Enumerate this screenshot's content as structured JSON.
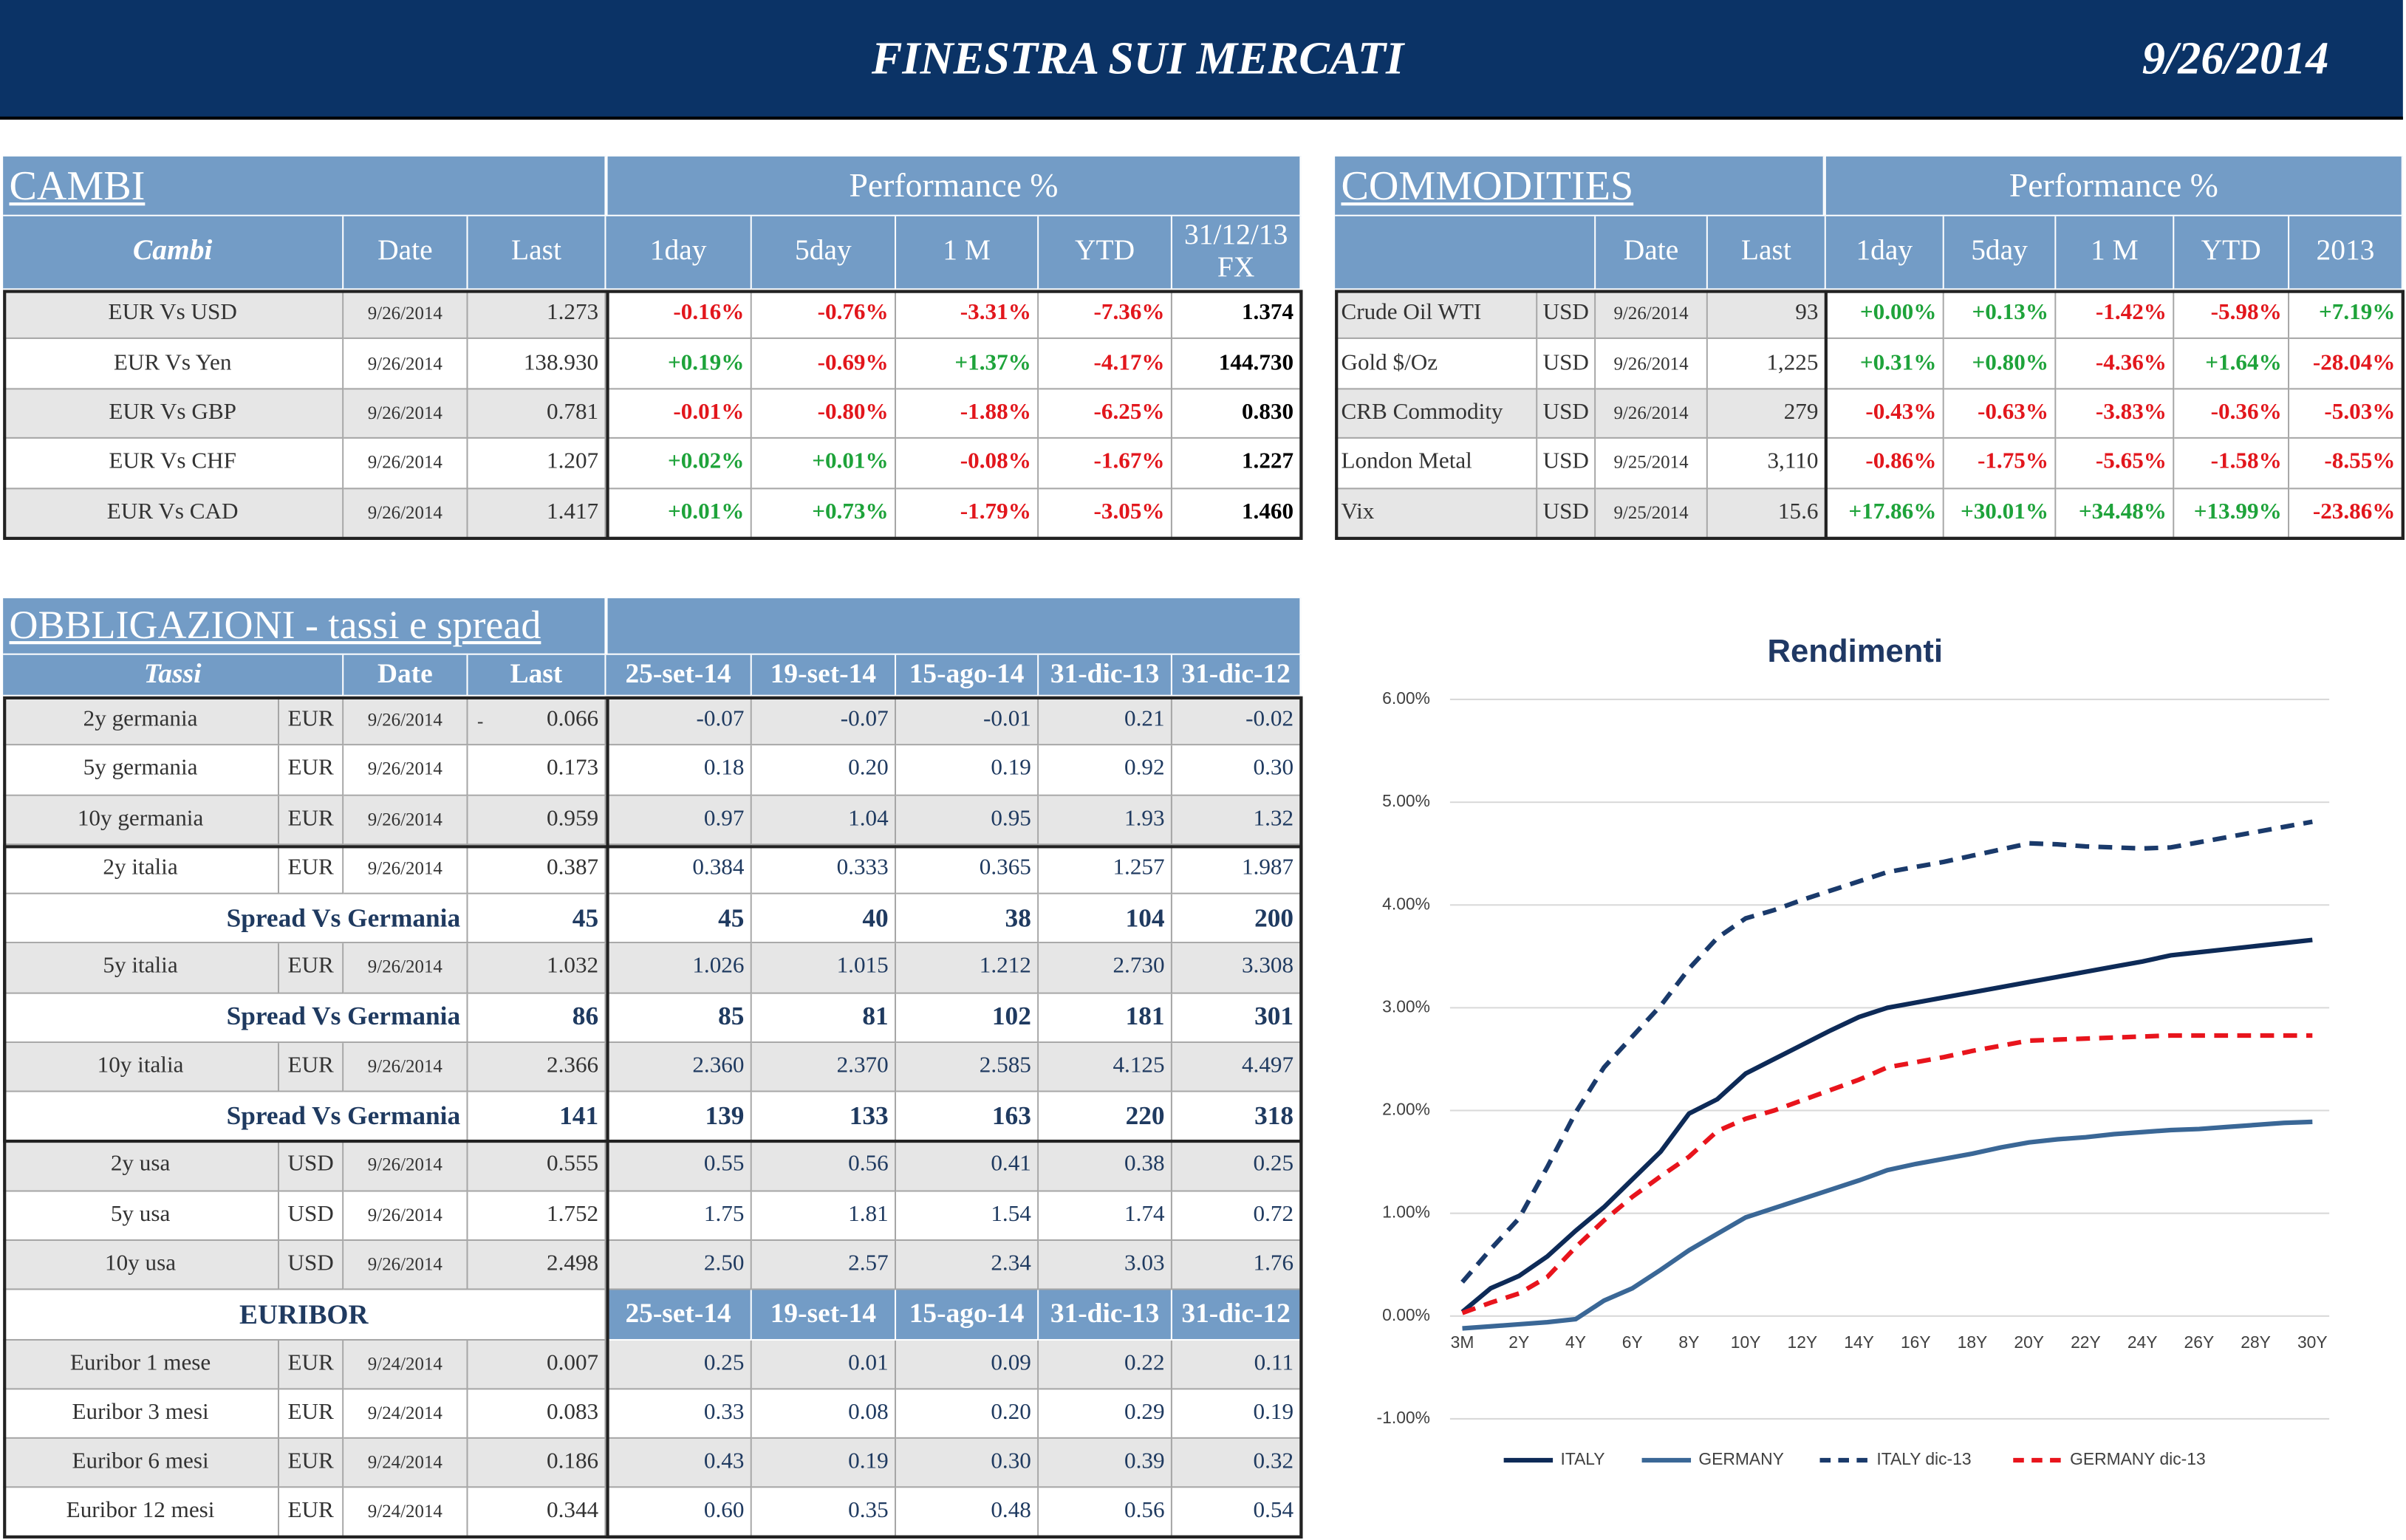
{
  "header": {
    "title": "FINESTRA SUI MERCATI",
    "date": "9/26/2014"
  },
  "cambi": {
    "title": "CAMBI",
    "group": "Performance  %",
    "columns": [
      "Cambi",
      "Date",
      "Last",
      "1day",
      "5day",
      "1 M",
      "YTD",
      "31/12/13 FX"
    ],
    "rows": [
      [
        "EUR Vs USD",
        "9/26/2014",
        "1.273",
        "-0.16%",
        "-0.76%",
        "-3.31%",
        "-7.36%",
        "1.374"
      ],
      [
        "EUR Vs Yen",
        "9/26/2014",
        "138.930",
        "+0.19%",
        "-0.69%",
        "+1.37%",
        "-4.17%",
        "144.730"
      ],
      [
        "EUR Vs GBP",
        "9/26/2014",
        "0.781",
        "-0.01%",
        "-0.80%",
        "-1.88%",
        "-6.25%",
        "0.830"
      ],
      [
        "EUR Vs CHF",
        "9/26/2014",
        "1.207",
        "+0.02%",
        "+0.01%",
        "-0.08%",
        "-1.67%",
        "1.227"
      ],
      [
        "EUR Vs CAD",
        "9/26/2014",
        "1.417",
        "+0.01%",
        "+0.73%",
        "-1.79%",
        "-3.05%",
        "1.460"
      ]
    ]
  },
  "commodities": {
    "title": "COMMODITIES",
    "group": "Performance  %",
    "columns": [
      "Date",
      "Last",
      "1day",
      "5day",
      "1 M",
      "YTD",
      "2013"
    ],
    "rows": [
      [
        "Crude Oil WTI",
        "USD",
        "9/26/2014",
        "93",
        "+0.00%",
        "+0.13%",
        "-1.42%",
        "-5.98%",
        "+7.19%"
      ],
      [
        "Gold $/Oz",
        "USD",
        "9/26/2014",
        "1,225",
        "+0.31%",
        "+0.80%",
        "-4.36%",
        "+1.64%",
        "-28.04%"
      ],
      [
        "CRB Commodity",
        "USD",
        "9/26/2014",
        "279",
        "-0.43%",
        "-0.63%",
        "-3.83%",
        "-0.36%",
        "-5.03%"
      ],
      [
        "London Metal",
        "USD",
        "9/25/2014",
        "3,110",
        "-0.86%",
        "-1.75%",
        "-5.65%",
        "-1.58%",
        "-8.55%"
      ],
      [
        "Vix",
        "USD",
        "9/25/2014",
        "15.6",
        "+17.86%",
        "+30.01%",
        "+34.48%",
        "+13.99%",
        "-23.86%"
      ]
    ]
  },
  "bonds": {
    "title": "OBBLIGAZIONI - tassi e spread",
    "columns": [
      "Tassi",
      "Date",
      "Last",
      "25-set-14",
      "19-set-14",
      "15-ago-14",
      "31-dic-13",
      "31-dic-12"
    ],
    "rows": [
      {
        "label": "2y germania",
        "currency": "EUR",
        "date": "9/26/2014",
        "sign": "-",
        "last": "0.066",
        "history": [
          "-0.07",
          "-0.07",
          "-0.01",
          "0.21",
          "-0.02"
        ]
      },
      {
        "label": "5y germania",
        "currency": "EUR",
        "date": "9/26/2014",
        "last": "0.173",
        "history": [
          "0.18",
          "0.20",
          "0.19",
          "0.92",
          "0.30"
        ]
      },
      {
        "label": "10y germania",
        "currency": "EUR",
        "date": "9/26/2014",
        "last": "0.959",
        "history": [
          "0.97",
          "1.04",
          "0.95",
          "1.93",
          "1.32"
        ]
      },
      {
        "label": "2y italia",
        "currency": "EUR",
        "date": "9/26/2014",
        "last": "0.387",
        "history": [
          "0.384",
          "0.333",
          "0.365",
          "1.257",
          "1.987"
        ]
      },
      {
        "spread": "Spread Vs Germania",
        "last": "45",
        "history": [
          "45",
          "40",
          "38",
          "104",
          "200"
        ]
      },
      {
        "label": "5y italia",
        "currency": "EUR",
        "date": "9/26/2014",
        "last": "1.032",
        "history": [
          "1.026",
          "1.015",
          "1.212",
          "2.730",
          "3.308"
        ]
      },
      {
        "spread": "Spread Vs Germania",
        "last": "86",
        "history": [
          "85",
          "81",
          "102",
          "181",
          "301"
        ]
      },
      {
        "label": "10y italia",
        "currency": "EUR",
        "date": "9/26/2014",
        "last": "2.366",
        "history": [
          "2.360",
          "2.370",
          "2.585",
          "4.125",
          "4.497"
        ]
      },
      {
        "spread": "Spread Vs Germania",
        "last": "141",
        "history": [
          "139",
          "133",
          "163",
          "220",
          "318"
        ]
      },
      {
        "label": "2y usa",
        "currency": "USD",
        "date": "9/26/2014",
        "last": "0.555",
        "history": [
          "0.55",
          "0.56",
          "0.41",
          "0.38",
          "0.25"
        ]
      },
      {
        "label": "5y usa",
        "currency": "USD",
        "date": "9/26/2014",
        "last": "1.752",
        "history": [
          "1.75",
          "1.81",
          "1.54",
          "1.74",
          "0.72"
        ]
      },
      {
        "label": "10y usa",
        "currency": "USD",
        "date": "9/26/2014",
        "last": "2.498",
        "history": [
          "2.50",
          "2.57",
          "2.34",
          "3.03",
          "1.76"
        ]
      }
    ]
  },
  "euribor": {
    "title": "EURIBOR",
    "columns": [
      "25-set-14",
      "19-set-14",
      "15-ago-14",
      "31-dic-13",
      "31-dic-12"
    ],
    "rows": [
      {
        "label": "Euribor 1 mese",
        "currency": "EUR",
        "date": "9/24/2014",
        "last": "0.007",
        "history": [
          "0.25",
          "0.01",
          "0.09",
          "0.22",
          "0.11"
        ]
      },
      {
        "label": "Euribor 3 mesi",
        "currency": "EUR",
        "date": "9/24/2014",
        "last": "0.083",
        "history": [
          "0.33",
          "0.08",
          "0.20",
          "0.29",
          "0.19"
        ]
      },
      {
        "label": "Euribor 6 mesi",
        "currency": "EUR",
        "date": "9/24/2014",
        "last": "0.186",
        "history": [
          "0.43",
          "0.19",
          "0.30",
          "0.39",
          "0.32"
        ]
      },
      {
        "label": "Euribor 12 mesi",
        "currency": "EUR",
        "date": "9/24/2014",
        "last": "0.344",
        "history": [
          "0.60",
          "0.35",
          "0.48",
          "0.56",
          "0.54"
        ]
      }
    ]
  },
  "chart_data": {
    "type": "line",
    "title": "Rendimenti",
    "categories": [
      "3M",
      null,
      "2Y",
      null,
      "4Y",
      null,
      "6Y",
      null,
      "8Y",
      null,
      "10Y",
      null,
      "12Y",
      null,
      "14Y",
      null,
      "16Y",
      null,
      "18Y",
      null,
      "20Y",
      null,
      "22Y",
      null,
      "24Y",
      null,
      "26Y",
      null,
      "28Y",
      null,
      "30Y"
    ],
    "ylim": [
      -1,
      6
    ],
    "yticks": [
      {
        "value": -1,
        "label": "-1.00%"
      },
      {
        "value": 0,
        "label": "0.00%"
      },
      {
        "value": 1,
        "label": "1.00%"
      },
      {
        "value": 2,
        "label": "2.00%"
      },
      {
        "value": 3,
        "label": "3.00%"
      },
      {
        "value": 4,
        "label": "4.00%"
      },
      {
        "value": 5,
        "label": "5.00%"
      },
      {
        "value": 6,
        "label": "6.00%"
      }
    ],
    "grid": true,
    "series": [
      {
        "name": "ITALY",
        "color": "#0d2a57",
        "dashed": false,
        "values": [
          0.04,
          0.27,
          0.39,
          0.58,
          0.83,
          1.06,
          1.33,
          1.6,
          1.97,
          2.11,
          2.36,
          2.5,
          2.64,
          2.78,
          2.91,
          3.0,
          3.05,
          3.1,
          3.15,
          3.2,
          3.25,
          3.3,
          3.35,
          3.4,
          3.45,
          3.51,
          3.54,
          3.57,
          3.6,
          3.63,
          3.66
        ]
      },
      {
        "name": "GERMANY",
        "color": "#3a6796",
        "dashed": false,
        "values": [
          -0.12,
          -0.1,
          -0.08,
          -0.06,
          -0.03,
          0.15,
          0.27,
          0.45,
          0.64,
          0.8,
          0.96,
          1.05,
          1.14,
          1.23,
          1.32,
          1.42,
          1.48,
          1.53,
          1.58,
          1.64,
          1.69,
          1.72,
          1.74,
          1.77,
          1.79,
          1.81,
          1.82,
          1.84,
          1.86,
          1.88,
          1.89
        ]
      },
      {
        "name": "ITALY dic-13",
        "color": "#1a3a6b",
        "dashed": true,
        "values": [
          0.33,
          0.65,
          0.95,
          1.45,
          1.98,
          2.42,
          2.72,
          3.02,
          3.38,
          3.68,
          3.87,
          3.95,
          4.05,
          4.14,
          4.23,
          4.32,
          4.37,
          4.42,
          4.48,
          4.54,
          4.6,
          4.59,
          4.57,
          4.56,
          4.55,
          4.56,
          4.61,
          4.66,
          4.71,
          4.76,
          4.81
        ]
      },
      {
        "name": "GERMANY dic-13",
        "color": "#e8141c",
        "dashed": true,
        "values": [
          0.03,
          0.13,
          0.22,
          0.38,
          0.67,
          0.93,
          1.16,
          1.36,
          1.55,
          1.8,
          1.92,
          2.0,
          2.1,
          2.2,
          2.3,
          2.42,
          2.47,
          2.52,
          2.58,
          2.63,
          2.68,
          2.69,
          2.7,
          2.71,
          2.72,
          2.73,
          2.73,
          2.73,
          2.73,
          2.73,
          2.73
        ]
      }
    ]
  }
}
